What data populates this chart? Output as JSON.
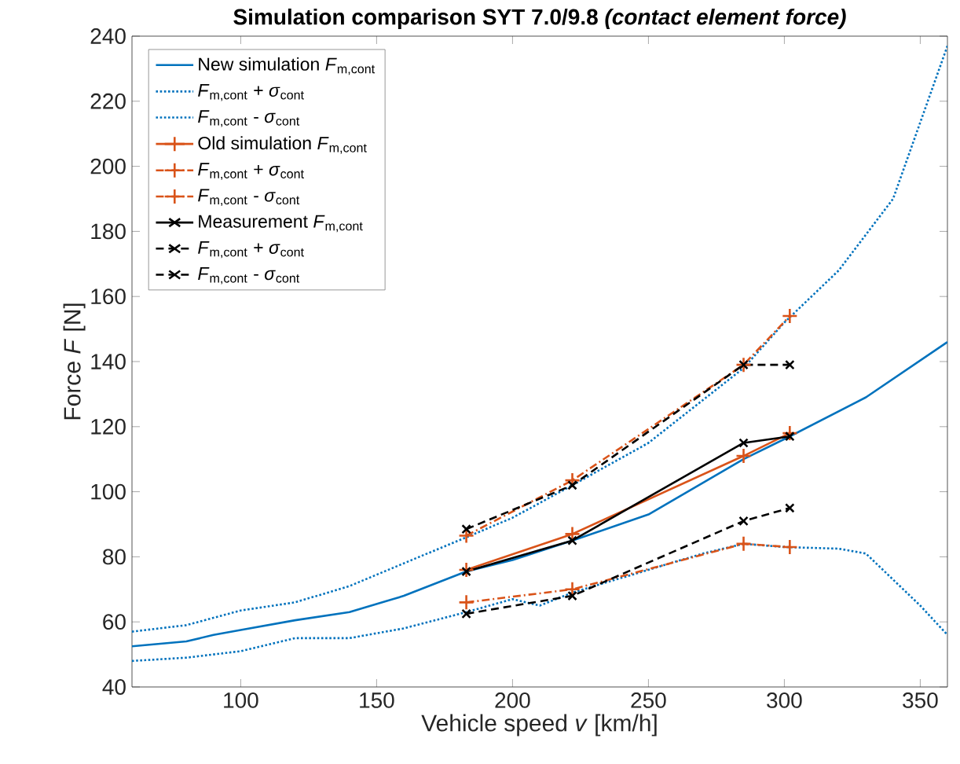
{
  "chart_data": {
    "type": "line",
    "title": "Simulation comparison SYT 7.0/9.8 *(contact element force)*",
    "xlabel": "Vehicle speed *v* [km/h]",
    "ylabel": "Force *F* [N]",
    "xlim": [
      60,
      360
    ],
    "ylim": [
      40,
      240
    ],
    "xticks": [
      100,
      150,
      200,
      250,
      300,
      350
    ],
    "yticks": [
      40,
      60,
      80,
      100,
      120,
      140,
      160,
      180,
      200,
      220,
      240
    ],
    "grid": false,
    "legend": "top left",
    "series": [
      {
        "name": "New simulation *F*$_{m,cont}$",
        "color": "#0072bd",
        "line_style": "solid",
        "marker": "none",
        "x": [
          60,
          80,
          90,
          100,
          120,
          140,
          160,
          183,
          200,
          222,
          250,
          285,
          302,
          330,
          360
        ],
        "values": [
          52.5,
          54,
          56,
          57.5,
          60.5,
          63,
          68,
          75.5,
          79,
          85,
          93,
          110,
          117,
          129,
          146
        ]
      },
      {
        "name": "*F*$_{m,cont}$ + *σ*$_{cont}$",
        "color": "#0072bd",
        "line_style": "dotted",
        "marker": "none",
        "x": [
          60,
          80,
          100,
          120,
          140,
          160,
          183,
          200,
          222,
          250,
          285,
          300,
          320,
          340,
          360
        ],
        "values": [
          57,
          59,
          63.5,
          66,
          71,
          78,
          86,
          92,
          102,
          115,
          138,
          152,
          168,
          190,
          237
        ]
      },
      {
        "name": "*F*$_{m,cont}$ - *σ*$_{cont}$",
        "color": "#0072bd",
        "line_style": "dotted",
        "marker": "none",
        "x": [
          60,
          80,
          100,
          120,
          140,
          160,
          183,
          200,
          210,
          222,
          250,
          270,
          285,
          300,
          320,
          330,
          340,
          350,
          360
        ],
        "values": [
          48,
          49,
          51,
          55,
          55,
          58,
          63,
          67,
          65,
          69,
          76,
          81,
          84,
          83,
          82.5,
          81,
          73,
          65,
          56
        ]
      },
      {
        "name": "Old simulation *F*$_{m,cont}$",
        "color": "#d95319",
        "line_style": "solid",
        "marker": "plus",
        "x": [
          183,
          222,
          285,
          302
        ],
        "values": [
          76,
          87,
          111,
          118
        ]
      },
      {
        "name": "*F*$_{m,cont}$ + *σ*$_{cont}$",
        "color": "#d95319",
        "line_style": "dashdot",
        "marker": "plus",
        "x": [
          183,
          222,
          285,
          302
        ],
        "values": [
          86.5,
          103.5,
          139,
          154
        ]
      },
      {
        "name": "*F*$_{m,cont}$ - *σ*$_{cont}$",
        "color": "#d95319",
        "line_style": "dashdot",
        "marker": "plus",
        "x": [
          183,
          222,
          285,
          302
        ],
        "values": [
          66,
          70,
          84,
          83
        ]
      },
      {
        "name": "Measurement *F*$_{m,cont}$",
        "color": "#000000",
        "line_style": "solid",
        "marker": "cross",
        "x": [
          183,
          222,
          285,
          302
        ],
        "values": [
          75.5,
          85,
          115,
          117
        ]
      },
      {
        "name": "*F*$_{m,cont}$ + *σ*$_{cont}$",
        "color": "#000000",
        "line_style": "dashed",
        "marker": "cross",
        "x": [
          183,
          222,
          285,
          302
        ],
        "values": [
          88.5,
          102,
          139,
          139
        ]
      },
      {
        "name": "*F*$_{m,cont}$ - *σ*$_{cont}$",
        "color": "#000000",
        "line_style": "dashed",
        "marker": "cross",
        "x": [
          183,
          222,
          285,
          302
        ],
        "values": [
          62.5,
          68,
          91,
          95
        ]
      }
    ]
  }
}
